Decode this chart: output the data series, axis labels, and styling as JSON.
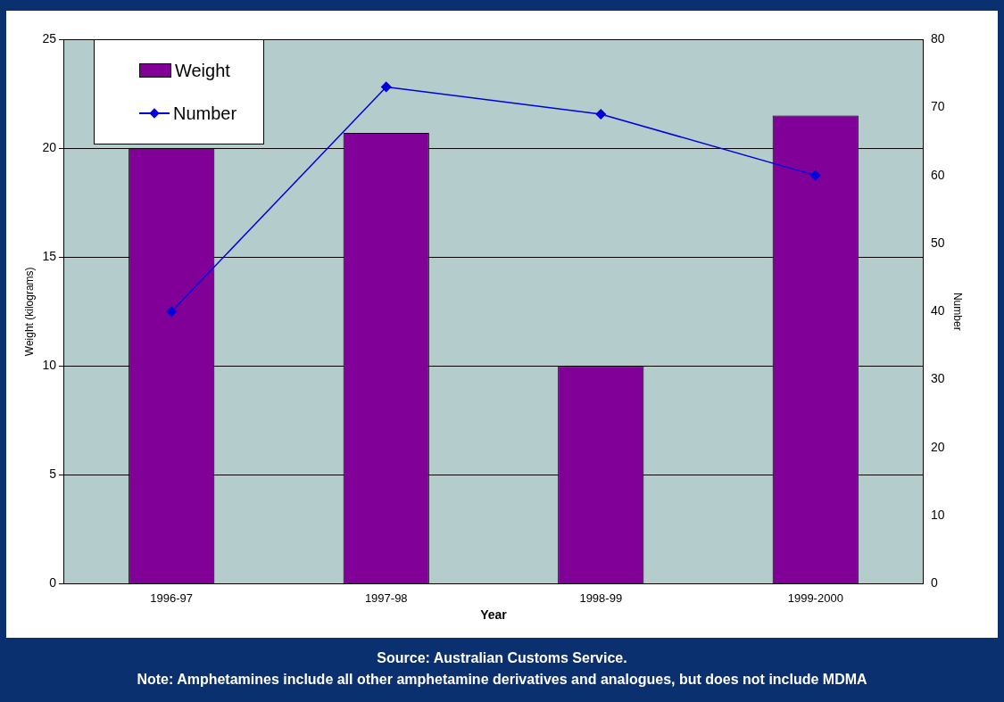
{
  "chart_data": {
    "type": "bar",
    "xlabel": "Year",
    "ylabel": "Weight (kilograms)",
    "y2label": "Number",
    "categories": [
      "1996-97",
      "1997-98",
      "1998-99",
      "1999-2000"
    ],
    "series": [
      {
        "name": "Weight",
        "color": "#800098",
        "values": [
          20.0,
          20.7,
          10.0,
          21.5
        ]
      },
      {
        "name": "Number",
        "type": "line",
        "axis": "y2",
        "color": "#0000dd",
        "marker": "diamond",
        "values": [
          40,
          73,
          69,
          60
        ]
      }
    ],
    "ylim": [
      0,
      25
    ],
    "yticks": [
      0,
      5,
      10,
      15,
      20,
      25
    ],
    "y2lim": [
      0,
      80
    ],
    "y2ticks": [
      0,
      10,
      20,
      30,
      40,
      50,
      60,
      70,
      80
    ],
    "grid": "y",
    "legend": "top left",
    "annotations": [
      "Source: Australian Customs Service.",
      "Note: Amphetamines include all other amphetamine derivatives and analogues, but does not include MDMA"
    ]
  }
}
